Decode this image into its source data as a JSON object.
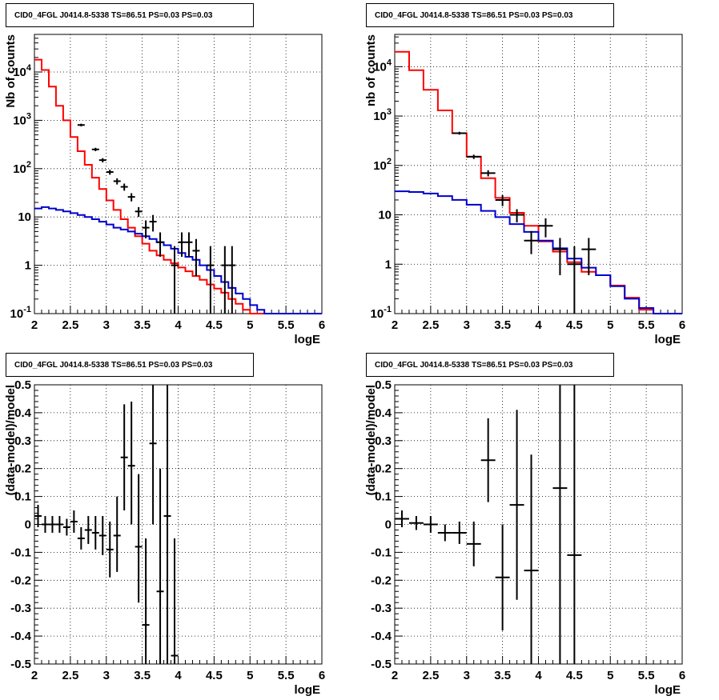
{
  "panels": [
    {
      "title": "CID0_4FGL J0414.8-5338 TS=86.51 PS=0.03 PS=0.03",
      "chart_data": {
        "type": "line",
        "xlabel": "logE",
        "ylabel": "Nb of counts",
        "xlim": [
          2,
          6
        ],
        "ylim": [
          0.1,
          60000
        ],
        "yscale": "log",
        "grid": true,
        "x_ticks": [
          "2",
          "2.5",
          "3",
          "3.5",
          "4",
          "4.5",
          "5",
          "5.5",
          "6"
        ],
        "y_ticks": [
          "10^-1",
          "1",
          "10",
          "10^2",
          "10^3",
          "10^4"
        ],
        "series": [
          {
            "color": "#ff0000",
            "step_edges": [
              2.0,
              2.1,
              2.2,
              2.3,
              2.4,
              2.5,
              2.6,
              2.7,
              2.8,
              2.9,
              3.0,
              3.1,
              3.2,
              3.3,
              3.4,
              3.5,
              3.6,
              3.7,
              3.8,
              3.9,
              4.0,
              4.1,
              4.2,
              4.3,
              4.4,
              4.5,
              4.6,
              4.7,
              4.8,
              4.9,
              5.0,
              5.1,
              5.2,
              5.3,
              5.4,
              5.5,
              5.6,
              5.7,
              5.8,
              5.9,
              6.0
            ],
            "values": [
              18000,
              11000,
              5000,
              2000,
              1000,
              450,
              230,
              120,
              65,
              38,
              22,
              14,
              9,
              6,
              4,
              2.8,
              2.0,
              1.6,
              1.3,
              1.1,
              0.9,
              0.75,
              0.6,
              0.5,
              0.4,
              0.33,
              0.27,
              0.2,
              0.16,
              0.12,
              0.1,
              0.1,
              0.1,
              0.1,
              0.1,
              0.1,
              0.1,
              0.1,
              0.1,
              0.1
            ]
          },
          {
            "color": "#0000cc",
            "step_edges": [
              2.0,
              2.1,
              2.2,
              2.3,
              2.4,
              2.5,
              2.6,
              2.7,
              2.8,
              2.9,
              3.0,
              3.1,
              3.2,
              3.3,
              3.4,
              3.5,
              3.6,
              3.7,
              3.8,
              3.9,
              4.0,
              4.1,
              4.2,
              4.3,
              4.4,
              4.5,
              4.6,
              4.7,
              4.8,
              4.9,
              5.0,
              5.1,
              5.2,
              5.3,
              5.4,
              5.5,
              5.6,
              5.7,
              5.8,
              5.9,
              6.0
            ],
            "values": [
              15,
              16,
              15,
              14,
              13,
              12,
              11,
              10,
              9,
              8,
              7,
              6,
              5.5,
              5,
              4.5,
              4,
              3.5,
              3,
              2.6,
              2.2,
              1.8,
              1.5,
              1.3,
              1.0,
              0.8,
              0.6,
              0.45,
              0.34,
              0.26,
              0.2,
              0.15,
              0.12,
              0.1,
              0.1,
              0.1,
              0.1,
              0.1,
              0.1,
              0.1,
              0.1
            ]
          }
        ],
        "points": [
          {
            "x": 2.65,
            "y": 800,
            "xerr": 0.05,
            "ylo": 750,
            "yhi": 850
          },
          {
            "x": 2.85,
            "y": 250,
            "xerr": 0.05,
            "ylo": 230,
            "yhi": 270
          },
          {
            "x": 2.95,
            "y": 150,
            "xerr": 0.05,
            "ylo": 135,
            "yhi": 165
          },
          {
            "x": 3.05,
            "y": 85,
            "xerr": 0.05,
            "ylo": 75,
            "yhi": 95
          },
          {
            "x": 3.15,
            "y": 55,
            "xerr": 0.05,
            "ylo": 47,
            "yhi": 63
          },
          {
            "x": 3.25,
            "y": 42,
            "xerr": 0.05,
            "ylo": 35,
            "yhi": 49
          },
          {
            "x": 3.35,
            "y": 26,
            "xerr": 0.05,
            "ylo": 21,
            "yhi": 31
          },
          {
            "x": 3.45,
            "y": 13,
            "xerr": 0.05,
            "ylo": 10,
            "yhi": 16
          },
          {
            "x": 3.55,
            "y": 6,
            "xerr": 0.05,
            "ylo": 3.6,
            "yhi": 8.5
          },
          {
            "x": 3.65,
            "y": 8,
            "xerr": 0.05,
            "ylo": 5,
            "yhi": 11
          },
          {
            "x": 3.75,
            "y": 3,
            "xerr": 0.05,
            "ylo": 1.5,
            "yhi": 4.8
          },
          {
            "x": 3.95,
            "y": 1,
            "xerr": 0.05,
            "ylo": 0.1,
            "yhi": 2.5
          },
          {
            "x": 4.05,
            "y": 3,
            "xerr": 0.05,
            "ylo": 1.5,
            "yhi": 4.8
          },
          {
            "x": 4.15,
            "y": 3,
            "xerr": 0.05,
            "ylo": 1.5,
            "yhi": 4.8
          },
          {
            "x": 4.25,
            "y": 2,
            "xerr": 0.05,
            "ylo": 0.6,
            "yhi": 3.5
          },
          {
            "x": 4.45,
            "y": 1,
            "xerr": 0.05,
            "ylo": 0.1,
            "yhi": 2.5
          },
          {
            "x": 4.65,
            "y": 1,
            "xerr": 0.05,
            "ylo": 0.1,
            "yhi": 2.5
          },
          {
            "x": 4.75,
            "y": 1,
            "xerr": 0.05,
            "ylo": 0.1,
            "yhi": 2.5
          }
        ]
      }
    },
    {
      "title": "CID0_4FGL J0414.8-5338 TS=86.51 PS=0.03 PS=0.03",
      "chart_data": {
        "type": "line",
        "xlabel": "logE",
        "ylabel": "nb of counts",
        "xlim": [
          2,
          6
        ],
        "ylim": [
          0.1,
          45000
        ],
        "yscale": "log",
        "grid": true,
        "x_ticks": [
          "2",
          "2.5",
          "3",
          "3.5",
          "4",
          "4.5",
          "5",
          "5.5",
          "6"
        ],
        "y_ticks": [
          "10^-1",
          "1",
          "10",
          "10^2",
          "10^3",
          "10^4"
        ],
        "series": [
          {
            "color": "#ff0000",
            "step_edges": [
              2.0,
              2.2,
              2.4,
              2.6,
              2.8,
              3.0,
              3.2,
              3.4,
              3.6,
              3.8,
              4.0,
              4.2,
              4.4,
              4.6,
              4.8,
              5.0,
              5.2,
              5.4,
              5.6,
              5.8,
              6.0
            ],
            "values": [
              20000,
              8500,
              3400,
              1300,
              450,
              150,
              55,
              22,
              11,
              6,
              2.9,
              1.8,
              1.1,
              0.7,
              0.6,
              0.37,
              0.21,
              0.12,
              0.1,
              0.1
            ]
          },
          {
            "color": "#0000cc",
            "step_edges": [
              2.0,
              2.2,
              2.4,
              2.6,
              2.8,
              3.0,
              3.2,
              3.4,
              3.6,
              3.8,
              4.0,
              4.2,
              4.4,
              4.6,
              4.8,
              5.0,
              5.2,
              5.4,
              5.6,
              5.8,
              6.0
            ],
            "values": [
              30,
              29,
              27,
              24,
              20,
              16,
              12,
              9,
              6.5,
              4.5,
              3,
              2.1,
              1.3,
              0.85,
              0.6,
              0.36,
              0.2,
              0.13,
              0.1,
              0.1
            ]
          }
        ],
        "points": [
          {
            "x": 2.9,
            "y": 450,
            "xerr": 0.1,
            "ylo": 420,
            "yhi": 480
          },
          {
            "x": 3.1,
            "y": 150,
            "xerr": 0.1,
            "ylo": 135,
            "yhi": 165
          },
          {
            "x": 3.3,
            "y": 70,
            "xerr": 0.1,
            "ylo": 60,
            "yhi": 80
          },
          {
            "x": 3.5,
            "y": 20,
            "xerr": 0.1,
            "ylo": 15,
            "yhi": 25
          },
          {
            "x": 3.7,
            "y": 10,
            "xerr": 0.1,
            "ylo": 7,
            "yhi": 13
          },
          {
            "x": 3.9,
            "y": 3,
            "xerr": 0.1,
            "ylo": 1.6,
            "yhi": 4.7
          },
          {
            "x": 4.1,
            "y": 6,
            "xerr": 0.1,
            "ylo": 3.5,
            "yhi": 8.5
          },
          {
            "x": 4.3,
            "y": 2,
            "xerr": 0.1,
            "ylo": 0.6,
            "yhi": 3.4
          },
          {
            "x": 4.5,
            "y": 1,
            "xerr": 0.1,
            "ylo": 0.1,
            "yhi": 2.3
          },
          {
            "x": 4.7,
            "y": 2,
            "xerr": 0.1,
            "ylo": 0.6,
            "yhi": 3.4
          }
        ]
      }
    },
    {
      "title": "CID0_4FGL J0414.8-5338 TS=86.51 PS=0.03 PS=0.03",
      "chart_data": {
        "type": "scatter",
        "xlabel": "logE",
        "ylabel": "(data-model)/model",
        "xlim": [
          2,
          6
        ],
        "ylim": [
          -0.5,
          0.5
        ],
        "grid": true,
        "x_ticks": [
          "2",
          "2.5",
          "3",
          "3.5",
          "4",
          "4.5",
          "5",
          "5.5",
          "6"
        ],
        "y_ticks": [
          "-0.5",
          "-0.4",
          "-0.3",
          "-0.2",
          "-0.1",
          "0",
          "0.1",
          "0.2",
          "0.3",
          "0.4",
          "0.5"
        ],
        "points": [
          {
            "x": 2.05,
            "y": 0.03,
            "xerr": 0.05,
            "ylo": -0.01,
            "yhi": 0.07
          },
          {
            "x": 2.15,
            "y": 0.0,
            "xerr": 0.05,
            "ylo": -0.03,
            "yhi": 0.03
          },
          {
            "x": 2.25,
            "y": 0.0,
            "xerr": 0.05,
            "ylo": -0.03,
            "yhi": 0.03
          },
          {
            "x": 2.35,
            "y": 0.0,
            "xerr": 0.05,
            "ylo": -0.03,
            "yhi": 0.03
          },
          {
            "x": 2.45,
            "y": -0.01,
            "xerr": 0.05,
            "ylo": -0.04,
            "yhi": 0.02
          },
          {
            "x": 2.55,
            "y": 0.01,
            "xerr": 0.05,
            "ylo": -0.03,
            "yhi": 0.05
          },
          {
            "x": 2.65,
            "y": -0.05,
            "xerr": 0.05,
            "ylo": -0.09,
            "yhi": -0.01
          },
          {
            "x": 2.75,
            "y": -0.02,
            "xerr": 0.05,
            "ylo": -0.07,
            "yhi": 0.03
          },
          {
            "x": 2.85,
            "y": -0.03,
            "xerr": 0.05,
            "ylo": -0.09,
            "yhi": 0.03
          },
          {
            "x": 2.95,
            "y": -0.04,
            "xerr": 0.05,
            "ylo": -0.11,
            "yhi": 0.03
          },
          {
            "x": 3.05,
            "y": -0.09,
            "xerr": 0.05,
            "ylo": -0.19,
            "yhi": 0.01
          },
          {
            "x": 3.15,
            "y": -0.04,
            "xerr": 0.05,
            "ylo": -0.17,
            "yhi": 0.1
          },
          {
            "x": 3.25,
            "y": 0.24,
            "xerr": 0.05,
            "ylo": 0.05,
            "yhi": 0.43
          },
          {
            "x": 3.35,
            "y": 0.21,
            "xerr": 0.05,
            "ylo": 0.0,
            "yhi": 0.44
          },
          {
            "x": 3.45,
            "y": -0.08,
            "xerr": 0.05,
            "ylo": -0.28,
            "yhi": 0.18
          },
          {
            "x": 3.55,
            "y": -0.36,
            "xerr": 0.05,
            "ylo": -0.5,
            "yhi": -0.05
          },
          {
            "x": 3.65,
            "y": 0.29,
            "xerr": 0.05,
            "ylo": 0.0,
            "yhi": 0.5
          },
          {
            "x": 3.75,
            "y": -0.24,
            "xerr": 0.05,
            "ylo": -0.5,
            "yhi": 0.2
          },
          {
            "x": 3.85,
            "y": 0.03,
            "xerr": 0.05,
            "ylo": -0.5,
            "yhi": 0.5
          },
          {
            "x": 3.95,
            "y": -0.47,
            "xerr": 0.05,
            "ylo": -0.5,
            "yhi": -0.05
          }
        ]
      }
    },
    {
      "title": "CID0_4FGL J0414.8-5338 TS=86.51 PS=0.03 PS=0.03",
      "chart_data": {
        "type": "scatter",
        "xlabel": "logE",
        "ylabel": "(data-model)/model",
        "xlim": [
          2,
          6
        ],
        "ylim": [
          -0.5,
          0.5
        ],
        "grid": true,
        "x_ticks": [
          "2",
          "2.5",
          "3",
          "3.5",
          "4",
          "4.5",
          "5",
          "5.5",
          "6"
        ],
        "y_ticks": [
          "-0.5",
          "-0.4",
          "-0.3",
          "-0.2",
          "-0.1",
          "0",
          "0.1",
          "0.2",
          "0.3",
          "0.4",
          "0.5"
        ],
        "points": [
          {
            "x": 2.1,
            "y": 0.02,
            "xerr": 0.1,
            "ylo": -0.01,
            "yhi": 0.05
          },
          {
            "x": 2.3,
            "y": 0.005,
            "xerr": 0.1,
            "ylo": -0.02,
            "yhi": 0.03
          },
          {
            "x": 2.5,
            "y": 0.0,
            "xerr": 0.1,
            "ylo": -0.03,
            "yhi": 0.03
          },
          {
            "x": 2.7,
            "y": -0.03,
            "xerr": 0.1,
            "ylo": -0.06,
            "yhi": 0.0
          },
          {
            "x": 2.9,
            "y": -0.03,
            "xerr": 0.1,
            "ylo": -0.07,
            "yhi": 0.01
          },
          {
            "x": 3.1,
            "y": -0.07,
            "xerr": 0.1,
            "ylo": -0.15,
            "yhi": 0.01
          },
          {
            "x": 3.3,
            "y": 0.23,
            "xerr": 0.1,
            "ylo": 0.08,
            "yhi": 0.38
          },
          {
            "x": 3.5,
            "y": -0.19,
            "xerr": 0.1,
            "ylo": -0.38,
            "yhi": 0.0
          },
          {
            "x": 3.7,
            "y": 0.07,
            "xerr": 0.1,
            "ylo": -0.27,
            "yhi": 0.41
          },
          {
            "x": 3.9,
            "y": -0.165,
            "xerr": 0.1,
            "ylo": -0.5,
            "yhi": 0.25
          },
          {
            "x": 4.3,
            "y": 0.13,
            "xerr": 0.1,
            "ylo": -0.5,
            "yhi": 0.5
          },
          {
            "x": 4.5,
            "y": -0.11,
            "xerr": 0.1,
            "ylo": -0.5,
            "yhi": 0.5
          }
        ]
      }
    }
  ]
}
